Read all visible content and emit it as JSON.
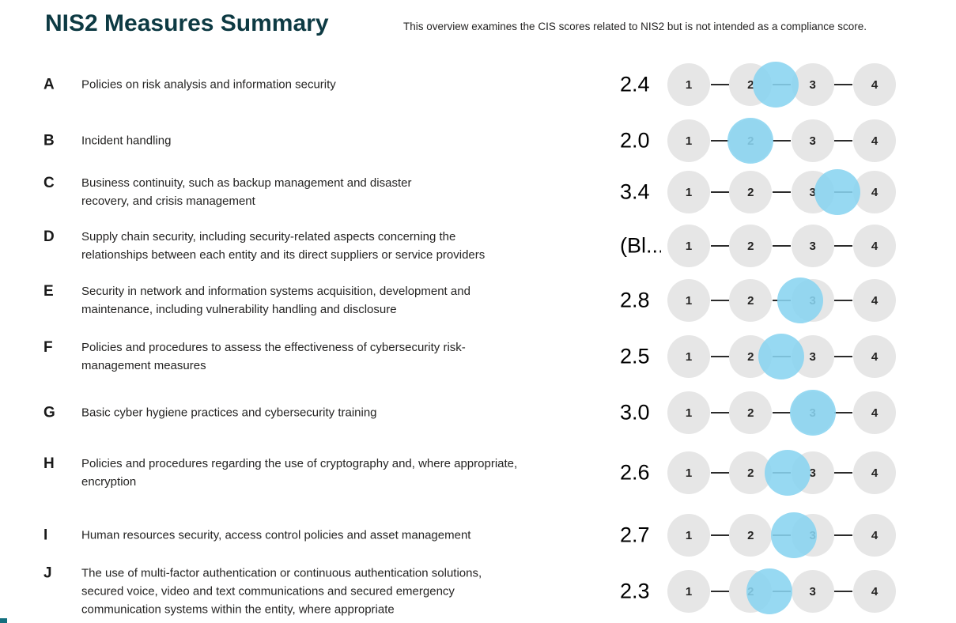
{
  "header": {
    "title": "NIS2 Measures Summary",
    "subtitle": "This overview examines the CIS scores related to NIS2 but is not intended as a compliance score."
  },
  "scale": {
    "min": 1,
    "max": 4,
    "ticks": [
      "1",
      "2",
      "3",
      "4"
    ]
  },
  "colors": {
    "title_teal": "#0d3a43",
    "circle_gray": "#e6e6e6",
    "marker_blue": "#89d4f0",
    "text_dark": "#252423",
    "corner_accent": "#136f7e"
  },
  "measures": [
    {
      "letter": "A",
      "description": "Policies on risk analysis and information security",
      "score_label": "2.4",
      "score": 2.4
    },
    {
      "letter": "B",
      "description": "Incident handling",
      "score_label": "2.0",
      "score": 2.0
    },
    {
      "letter": "C",
      "description": "Business continuity, such as backup management and disaster\nrecovery, and crisis management",
      "score_label": "3.4",
      "score": 3.4
    },
    {
      "letter": "D",
      "description": "Supply chain security, including security-related aspects concerning the\nrelationships between each entity and its direct suppliers or service providers",
      "score_label": "(Bl...",
      "score": null
    },
    {
      "letter": "E",
      "description": "Security in network and information systems acquisition, development and\nmaintenance, including vulnerability handling and disclosure",
      "score_label": "2.8",
      "score": 2.8
    },
    {
      "letter": "F",
      "description": "Policies and procedures to assess the effectiveness of cybersecurity risk-\nmanagement measures",
      "score_label": "2.5",
      "score": 2.5
    },
    {
      "letter": "G",
      "description": "Basic cyber hygiene practices and cybersecurity training",
      "score_label": "3.0",
      "score": 3.0
    },
    {
      "letter": "H",
      "description": "Policies and procedures regarding the use of cryptography and, where appropriate,\nencryption",
      "score_label": "2.6",
      "score": 2.6
    },
    {
      "letter": "I",
      "description": "Human resources security, access control policies and asset management",
      "score_label": "2.7",
      "score": 2.7
    },
    {
      "letter": "J",
      "description": "The use of multi-factor authentication or continuous authentication solutions,\nsecured voice, video and text communications and secured emergency\ncommunication systems within the entity, where appropriate",
      "score_label": "2.3",
      "score": 2.3
    }
  ],
  "chart_data": {
    "type": "scatter",
    "title": "NIS2 Measures Summary",
    "subtitle": "This overview examines the CIS scores related to NIS2 but is not intended as a compliance score.",
    "categories": [
      "A",
      "B",
      "C",
      "D",
      "E",
      "F",
      "G",
      "H",
      "I",
      "J"
    ],
    "category_labels": [
      "Policies on risk analysis and information security",
      "Incident handling",
      "Business continuity, such as backup management and disaster recovery, and crisis management",
      "Supply chain security, including security-related aspects concerning the relationships between each entity and its direct suppliers or service providers",
      "Security in network and information systems acquisition, development and maintenance, including vulnerability handling and disclosure",
      "Policies and procedures to assess the effectiveness of cybersecurity risk-management measures",
      "Basic cyber hygiene practices and cybersecurity training",
      "Policies and procedures regarding the use of cryptography and, where appropriate, encryption",
      "Human resources security, access control policies and asset management",
      "The use of multi-factor authentication or continuous authentication solutions, secured voice, video and text communications and secured emergency communication systems within the entity, where appropriate"
    ],
    "values": [
      2.4,
      2.0,
      3.4,
      null,
      2.8,
      2.5,
      3.0,
      2.6,
      2.7,
      2.3
    ],
    "value_labels": [
      "2.4",
      "2.0",
      "3.4",
      "(Bl...",
      "2.8",
      "2.5",
      "3.0",
      "2.6",
      "2.7",
      "2.3"
    ],
    "xlim": [
      1,
      4
    ],
    "x_ticks": [
      1,
      2,
      3,
      4
    ],
    "grid": false,
    "legend": false
  }
}
